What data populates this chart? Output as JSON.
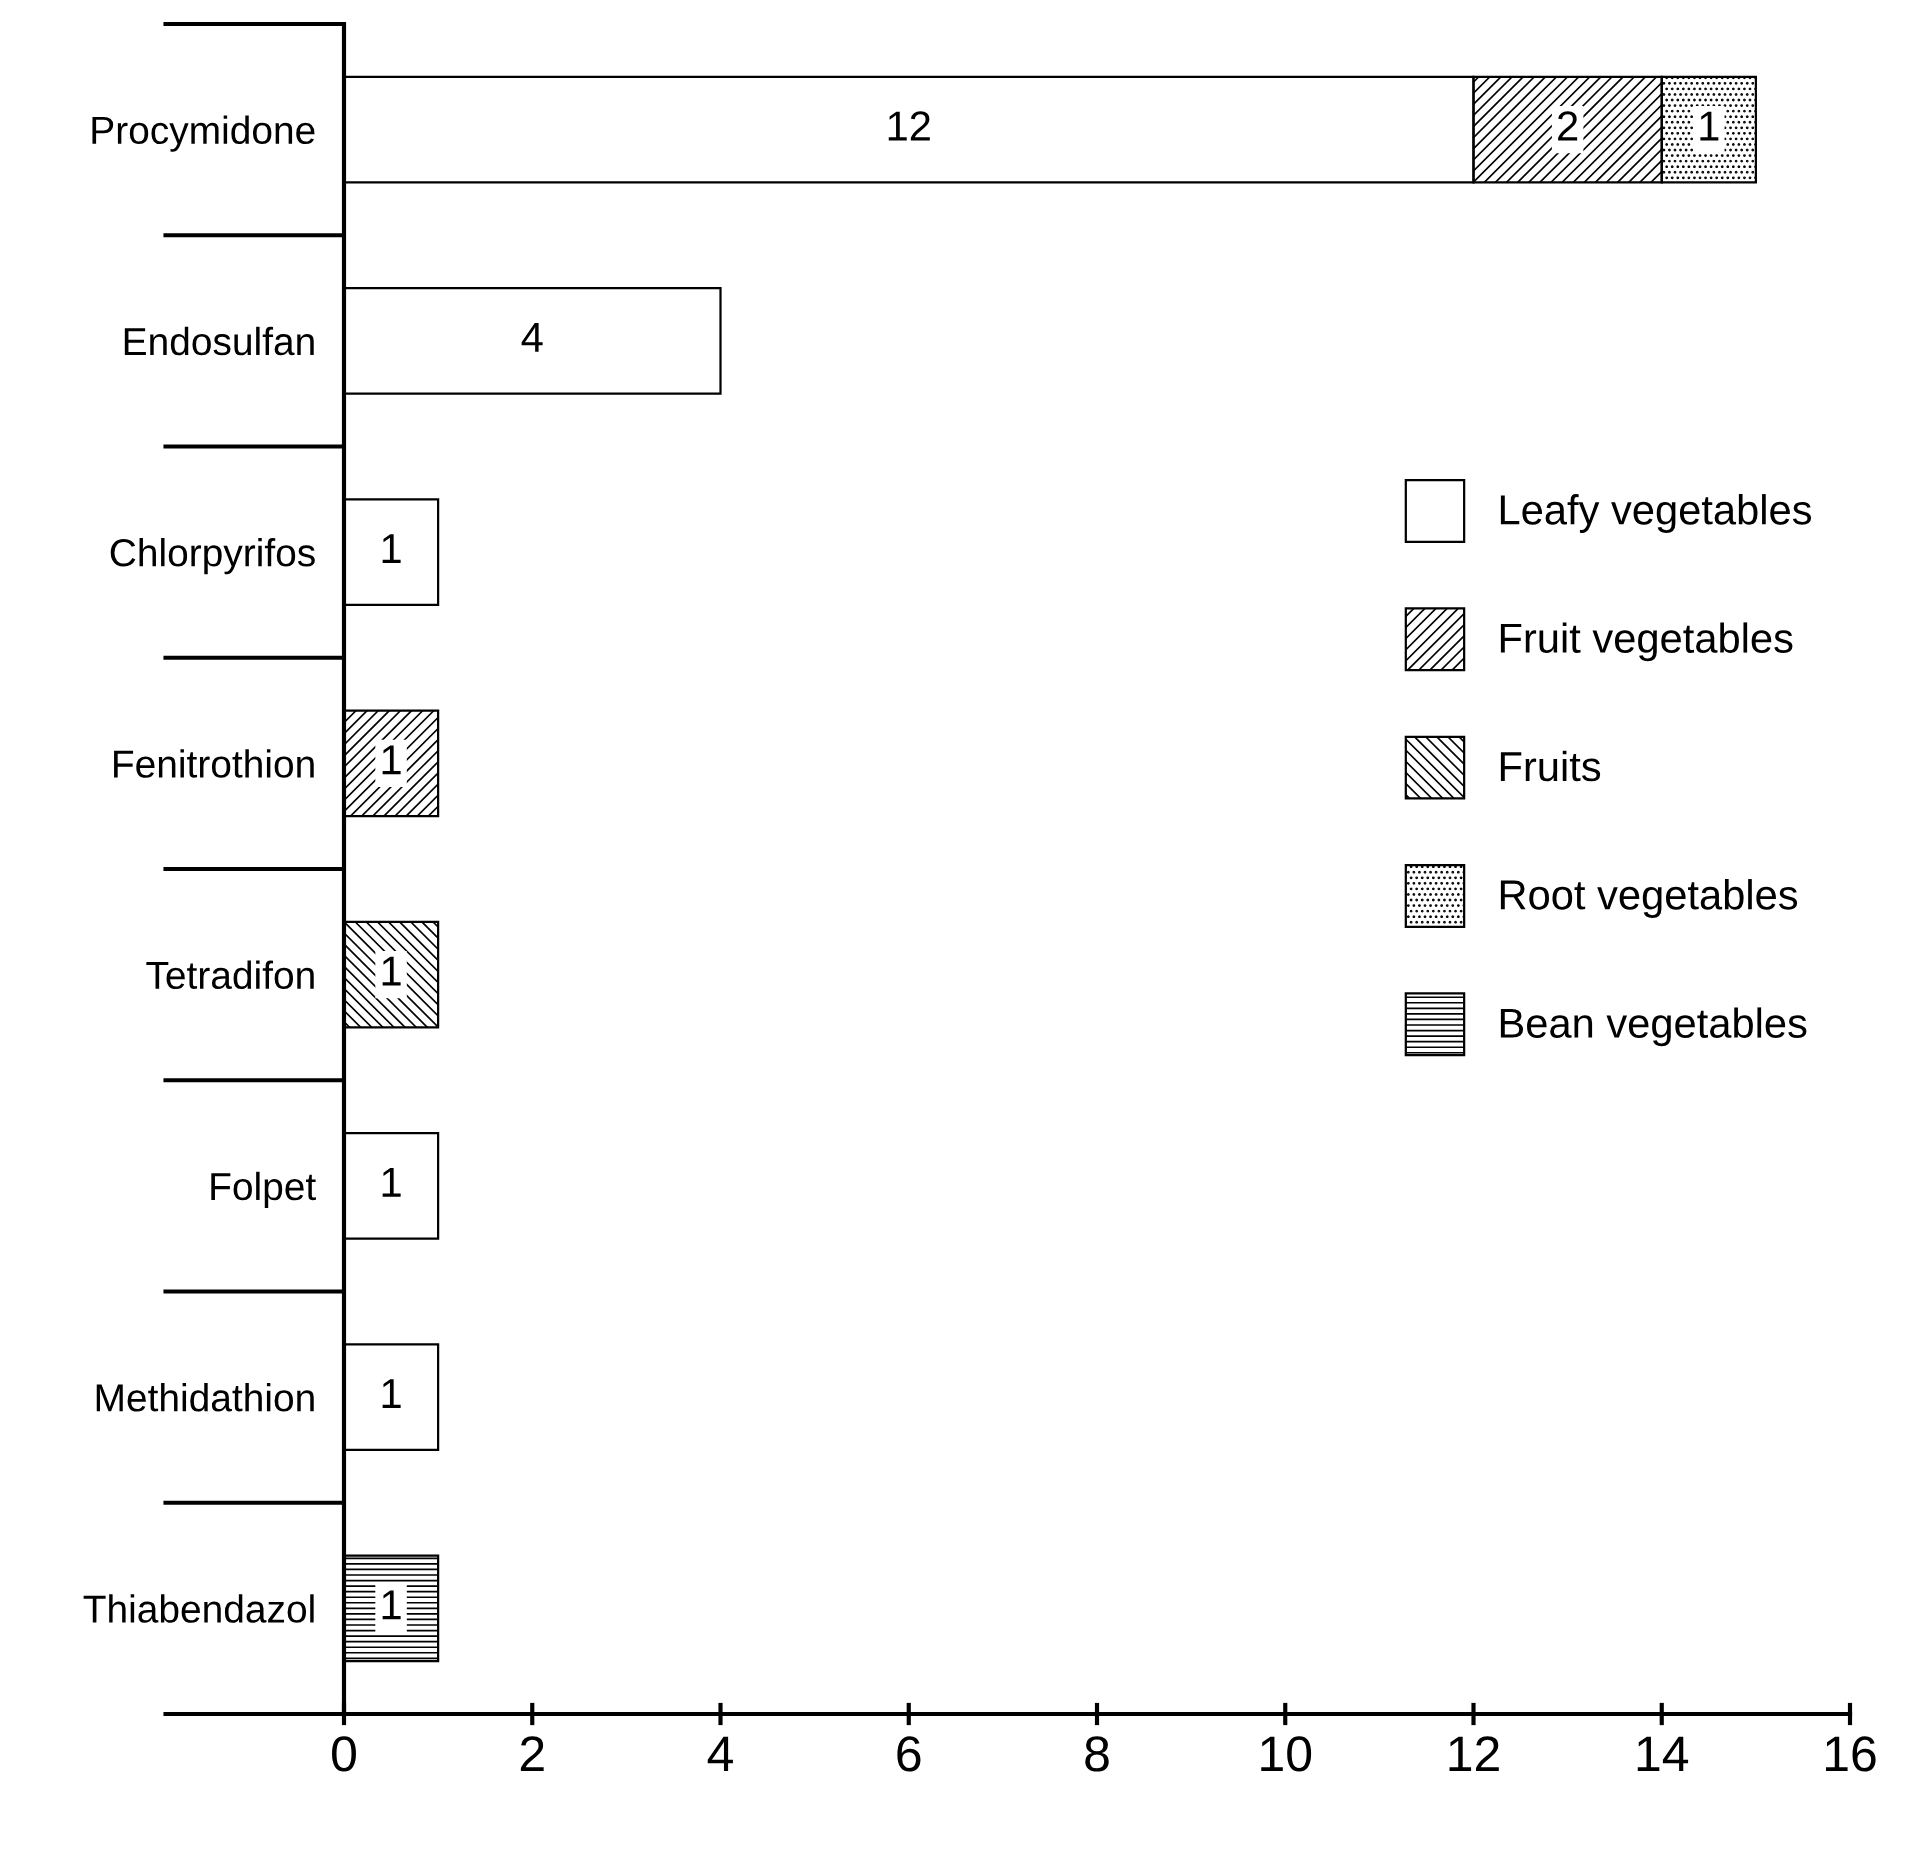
{
  "chart_data": {
    "type": "bar",
    "orientation": "horizontal",
    "stacked": true,
    "data_labels": true,
    "legend": "right",
    "grid": false,
    "categories": [
      "Procymidone",
      "Endosulfan",
      "Chlorpyrifos",
      "Fenitrothion",
      "Tetradifon",
      "Folpet",
      "Methidathion",
      "Thiabendazol"
    ],
    "xlim": [
      0,
      16
    ],
    "xticks": [
      0,
      2,
      4,
      6,
      8,
      10,
      12,
      14,
      16
    ],
    "series": [
      {
        "name": "Leafy vegetables",
        "color": "#ffffff",
        "values": [
          12,
          4,
          1,
          null,
          null,
          1,
          1,
          null
        ]
      },
      {
        "name": "Fruit vegetables",
        "color": "#000000",
        "values": [
          2,
          null,
          null,
          1,
          null,
          null,
          null,
          null
        ]
      },
      {
        "name": "Fruits",
        "color": "#000000",
        "values": [
          null,
          null,
          null,
          null,
          1,
          null,
          null,
          null
        ]
      },
      {
        "name": "Root vegetables",
        "color": "#000000",
        "values": [
          1,
          null,
          null,
          null,
          null,
          null,
          null,
          null
        ]
      },
      {
        "name": "Bean vegetables",
        "color": "#000000",
        "values": [
          null,
          null,
          null,
          null,
          null,
          null,
          null,
          1
        ]
      }
    ]
  }
}
